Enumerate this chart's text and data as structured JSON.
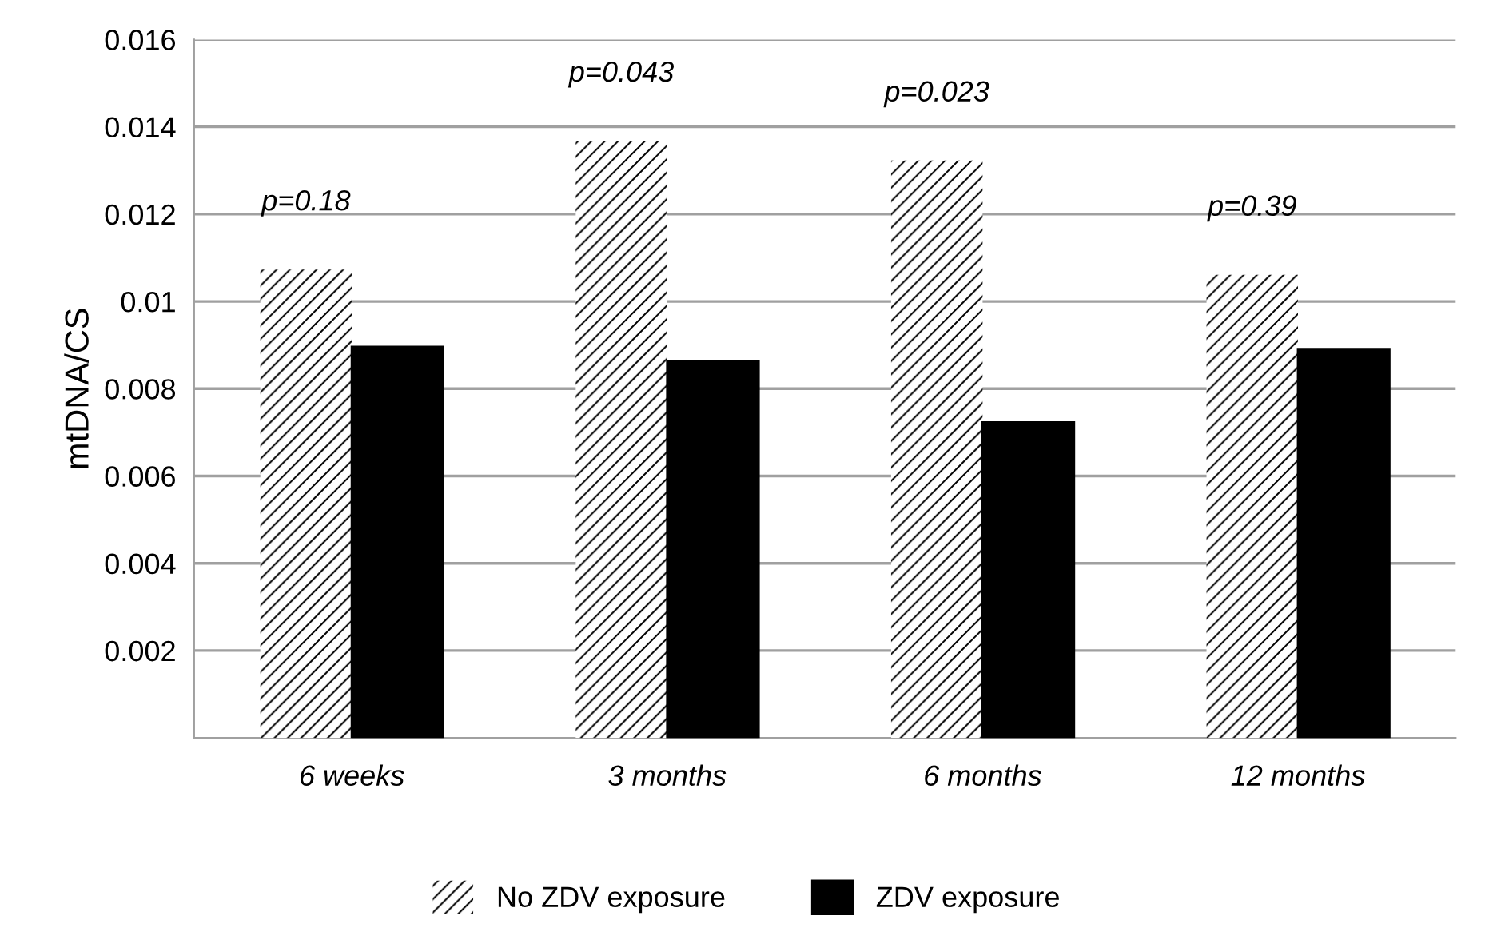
{
  "chart_data": {
    "type": "bar",
    "ylabel": "mtDNA/CS",
    "categories": [
      "6 weeks",
      "3 months",
      "6 months",
      "12 months"
    ],
    "series": [
      {
        "name": "No ZDV exposure",
        "color": "#ffffff",
        "values": [
          0.01073,
          0.01368,
          0.01323,
          0.01061
        ]
      },
      {
        "name": "ZDV exposure",
        "color": "#000000",
        "values": [
          0.00896,
          0.00862,
          0.00723,
          0.00891
        ]
      }
    ],
    "ylim": [
      0,
      0.016
    ],
    "yticks": [
      0.002,
      0.004,
      0.006,
      0.008,
      {
        "value": 0.01,
        "label": "0.01"
      },
      0.012,
      0.014,
      0.016
    ],
    "grid": "y",
    "legend": "bottom",
    "annotations": [
      "p=0.18",
      "p=0.043",
      "p=0.023",
      "p=0.39"
    ]
  }
}
